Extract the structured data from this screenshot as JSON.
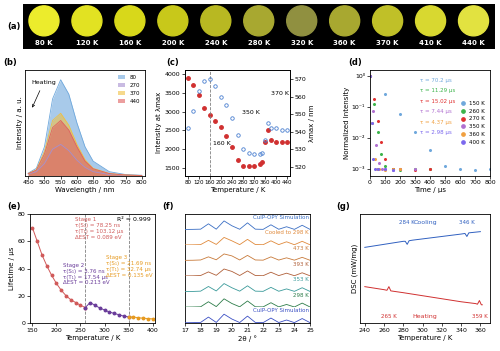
{
  "chart_data": [
    {
      "type": "swatches",
      "label": "(a)",
      "tick_labels": false,
      "categories": [
        "80 K",
        "120 K",
        "160 K",
        "200 K",
        "240 K",
        "280 K",
        "320 K",
        "360 K",
        "370 K",
        "410 K",
        "440 K"
      ],
      "colors": [
        "#ecec2c",
        "#e2e222",
        "#d8d81a",
        "#c8c81a",
        "#b8b822",
        "#a8a830",
        "#909040",
        "#a8a830",
        "#c0c028",
        "#d8d830",
        "#e2e240"
      ]
    },
    {
      "type": "line",
      "label": "(b)",
      "x_label": "Wavelength / nm",
      "y_label": "Intensity / a. u.",
      "x": [
        450,
        475,
        500,
        525,
        550,
        575,
        600,
        625,
        650,
        700,
        750,
        800
      ],
      "series": [
        {
          "name": "80",
          "color": "#6fa8dc",
          "values": [
            50,
            150,
            600,
            1600,
            2000,
            1700,
            1100,
            600,
            300,
            80,
            20,
            5
          ]
        },
        {
          "name": "270",
          "color": "#a58fd0",
          "values": [
            30,
            80,
            250,
            550,
            650,
            520,
            320,
            170,
            80,
            20,
            5,
            0
          ]
        },
        {
          "name": "370",
          "color": "#f0c040",
          "values": [
            40,
            120,
            500,
            1150,
            1300,
            1050,
            650,
            330,
            150,
            40,
            10,
            0
          ]
        },
        {
          "name": "440",
          "color": "#e06060",
          "values": [
            40,
            110,
            450,
            1000,
            1150,
            950,
            600,
            300,
            140,
            40,
            10,
            0
          ]
        }
      ],
      "xlim": [
        440,
        810
      ],
      "xticks": [
        450,
        500,
        550,
        600,
        650,
        700,
        750,
        800
      ],
      "ylim": [
        0,
        2200
      ],
      "tick_labels": "x",
      "legend": "upper right",
      "annotations": [
        {
          "text": "Heating"
        }
      ]
    },
    {
      "type": "scatter",
      "label": "(c)",
      "x_label": "Temperature / K",
      "y_label": "Intensity at λmax",
      "y2_label": "λmax / nm",
      "x": [
        80,
        100,
        120,
        140,
        160,
        180,
        200,
        220,
        240,
        260,
        280,
        300,
        320,
        340,
        350,
        360,
        370,
        380,
        400,
        420,
        440
      ],
      "series": [
        {
          "color": "#d03030",
          "marker": "filled_circle",
          "values": [
            3900,
            3700,
            3450,
            3100,
            2900,
            2750,
            2600,
            2350,
            2050,
            1700,
            1550,
            1550,
            1550,
            1600,
            1650,
            2200,
            2500,
            2250,
            2200,
            2200,
            2200
          ]
        },
        {
          "color": "#4a7fd0",
          "marker": "open_circle",
          "axis": "y2",
          "values": [
            542,
            552,
            563,
            569,
            570,
            566,
            560,
            555,
            548,
            538,
            530,
            528,
            527,
            527,
            528,
            535,
            545,
            542,
            542,
            541,
            541
          ]
        }
      ],
      "xlim": [
        70,
        450
      ],
      "xticks": [
        80,
        120,
        160,
        200,
        240,
        280,
        320,
        360,
        400,
        440
      ],
      "ylim": [
        1300,
        4100
      ],
      "yticks": [
        1500,
        2000,
        2500,
        3000,
        3500,
        4000
      ],
      "y2lim": [
        515,
        575
      ],
      "y2ticks": [
        520,
        530,
        540,
        550,
        560,
        570
      ],
      "vlines": [
        160
      ],
      "annotations": [
        {
          "text": "160 K",
          "x": 160
        },
        {
          "text": "350 K",
          "x": 350
        },
        {
          "text": "370 K",
          "x": 370
        }
      ]
    },
    {
      "type": "scatter",
      "label": "(d)",
      "x_label": "Time / μs",
      "y_label": "Normalized Intensity",
      "log": "y",
      "marker": "circle",
      "legend": "center right",
      "series": [
        {
          "name": "150 K",
          "color": "#6fa8dc",
          "annotation": "τ = 70.2 μs",
          "x": [
            0,
            100,
            200,
            300,
            400,
            500,
            600,
            700,
            800
          ],
          "values": [
            1,
            0.25,
            0.06,
            0.015,
            0.004,
            0.0012,
            0.001,
            0.0009,
            0.001
          ]
        },
        {
          "name": "260 K",
          "color": "#3cb44b",
          "annotation": "τ = 11.29 μs",
          "x": [
            0,
            25,
            50,
            75,
            100,
            150,
            200,
            300,
            400
          ],
          "values": [
            1,
            0.12,
            0.015,
            0.003,
            0.0012,
            0.001,
            0.0009,
            0.001,
            0.001
          ]
        },
        {
          "name": "270 K",
          "color": "#e03030",
          "annotation": "τ = 15.02 μs",
          "x": [
            0,
            25,
            50,
            75,
            100,
            150,
            200,
            300,
            400
          ],
          "values": [
            1,
            0.18,
            0.035,
            0.007,
            0.002,
            0.001,
            0.001,
            0.0009,
            0.001
          ]
        },
        {
          "name": "350 K",
          "color": "#b070d0",
          "annotation": "τ = 7.44 μs",
          "x": [
            0,
            20,
            40,
            60,
            80,
            100,
            150,
            200,
            300
          ],
          "values": [
            1,
            0.07,
            0.006,
            0.0015,
            0.001,
            0.001,
            0.0009,
            0.001,
            0.001
          ]
        },
        {
          "name": "360 K",
          "color": "#f0a040",
          "annotation": "τ = 4.37 μs",
          "x": [
            0,
            15,
            30,
            45,
            60,
            100,
            150,
            200
          ],
          "values": [
            1,
            0.03,
            0.002,
            0.001,
            0.001,
            0.0009,
            0.001,
            0.001
          ]
        },
        {
          "name": "400 K",
          "color": "#7b68ee",
          "annotation": "τ = 2.98 μs",
          "x": [
            0,
            10,
            20,
            30,
            50,
            100,
            150
          ],
          "values": [
            1,
            0.03,
            0.002,
            0.001,
            0.001,
            0.001,
            0.0009
          ]
        }
      ],
      "xlim": [
        0,
        800
      ],
      "xticks": [
        0,
        100,
        200,
        300,
        400,
        500,
        600,
        700,
        800
      ],
      "ylim": [
        0.0006,
        1.5
      ],
      "yticks": [
        {
          "value": 0.001,
          "label": "10⁻³"
        },
        {
          "value": 0.01,
          "label": "10⁻²"
        },
        {
          "value": 0.1,
          "label": "10⁻¹"
        },
        {
          "value": 1,
          "label": "10⁰"
        }
      ]
    },
    {
      "type": "scatter",
      "label": "(e)",
      "x_label": "Temperature / K",
      "y_label": "Lifetime / μs",
      "series": [
        {
          "stage": "Stage 1",
          "color": "#d05a5a",
          "notes": [
            "τ(S₁) = 78.25 ns",
            "τ(T₁) = 103.12 μs",
            "ΔEST = 0.089 eV"
          ],
          "x": [
            150,
            160,
            170,
            180,
            190,
            200,
            210,
            220,
            230,
            240,
            250,
            260
          ],
          "values": [
            70,
            60,
            50,
            42,
            35,
            29,
            24,
            20,
            17,
            15,
            13,
            11.3
          ]
        },
        {
          "stage": "Stage 2",
          "color": "#6a3d9a",
          "notes": [
            "τ(S₁) = 3.76 ns",
            "τ(T₁) = 17.54 μs",
            "ΔEST = 0.213 eV"
          ],
          "x": [
            260,
            270,
            280,
            290,
            300,
            310,
            320,
            330,
            340,
            350
          ],
          "values": [
            11.3,
            15,
            13,
            11,
            9.5,
            8,
            7,
            6,
            5,
            4.4
          ]
        },
        {
          "stage": "Stage 3",
          "color": "#e69a20",
          "notes": [
            "τ(S₁) = 21.69 ns",
            "τ(T₁) = 32.74 μs",
            "ΔEST = 0.135 eV"
          ],
          "x": [
            350,
            360,
            370,
            380,
            390,
            400
          ],
          "values": [
            4.4,
            4.37,
            3.8,
            3.5,
            3.2,
            2.98
          ]
        }
      ],
      "xlim": [
        145,
        405
      ],
      "xticks": [
        150,
        200,
        250,
        300,
        350,
        400
      ],
      "ylim": [
        0,
        80
      ],
      "yticks": [
        0,
        20,
        40,
        60,
        80
      ],
      "vlines": [
        260,
        350
      ],
      "annotations": [
        {
          "text": "R² = 0.999"
        }
      ]
    },
    {
      "type": "line",
      "label": "(f)",
      "x_label": "2θ / °",
      "tick_labels": "x",
      "x": [
        17,
        17.5,
        18,
        18.5,
        19,
        19.5,
        20,
        20.5,
        21,
        21.5,
        22,
        22.5,
        23,
        23.5,
        24,
        24.5,
        25
      ],
      "series": [
        {
          "label": "CuIP-OPY Simulation",
          "color": "#3b6fc4",
          "values": [
            2,
            3,
            5,
            60,
            5,
            90,
            40,
            4,
            70,
            5,
            3,
            50,
            4,
            30,
            3,
            45,
            3
          ]
        },
        {
          "label": "Cooled to 298 K",
          "color": "#e08a3c",
          "values": [
            3,
            4,
            6,
            50,
            8,
            80,
            45,
            6,
            60,
            7,
            5,
            45,
            6,
            35,
            5,
            40,
            4
          ]
        },
        {
          "label": "473 K",
          "color": "#c87a3a",
          "values": [
            4,
            5,
            8,
            40,
            10,
            70,
            50,
            8,
            55,
            8,
            6,
            40,
            7,
            30,
            6,
            35,
            5
          ]
        },
        {
          "label": "393 K",
          "color": "#b0603a",
          "values": [
            4,
            5,
            8,
            45,
            10,
            75,
            50,
            8,
            55,
            8,
            6,
            42,
            7,
            32,
            6,
            36,
            5
          ]
        },
        {
          "label": "353 K",
          "color": "#3a9a9a",
          "values": [
            3,
            4,
            7,
            55,
            9,
            85,
            42,
            7,
            62,
            7,
            5,
            46,
            6,
            30,
            5,
            42,
            4
          ]
        },
        {
          "label": "298 K",
          "color": "#2e7d4a",
          "values": [
            3,
            4,
            6,
            58,
            8,
            88,
            40,
            6,
            66,
            6,
            5,
            48,
            5,
            30,
            4,
            44,
            4
          ]
        },
        {
          "label": "CuIP-OPY Simulation",
          "color": "#3b4fc4",
          "values": [
            2,
            3,
            5,
            60,
            5,
            90,
            40,
            4,
            70,
            5,
            3,
            50,
            4,
            30,
            3,
            45,
            3
          ]
        }
      ],
      "xlim": [
        17,
        25
      ],
      "xticks": [
        17,
        18,
        19,
        20,
        21,
        22,
        23,
        24,
        25
      ],
      "ylim": [
        0,
        160
      ]
    },
    {
      "type": "line",
      "label": "(g)",
      "x_label": "Temperature / K",
      "y_label": "DSC (mW/mg)",
      "tick_labels": "x",
      "series": [
        {
          "label": "Cooling",
          "color": "#3060c0",
          "annotations": [
            {
              "text": "284 K",
              "x": 284
            },
            {
              "text": "346 K",
              "x": 346
            }
          ],
          "x": [
            240,
            260,
            280,
            282,
            284,
            286,
            290,
            300,
            320,
            340,
            344,
            346,
            348,
            360
          ],
          "values": [
            0.45,
            0.5,
            0.55,
            0.55,
            0.5,
            0.56,
            0.57,
            0.59,
            0.63,
            0.67,
            0.68,
            0.63,
            0.69,
            0.71
          ]
        },
        {
          "label": "Heating",
          "color": "#d03030",
          "annotations": [
            {
              "text": "265 K",
              "x": 265
            },
            {
              "text": "359 K",
              "x": 359
            }
          ],
          "x": [
            240,
            260,
            263,
            265,
            267,
            280,
            300,
            320,
            340,
            355,
            357,
            359,
            361,
            362
          ],
          "values": [
            -0.2,
            -0.25,
            -0.26,
            -0.2,
            -0.27,
            -0.3,
            -0.35,
            -0.4,
            -0.45,
            -0.48,
            -0.49,
            -0.43,
            -0.5,
            -0.5
          ]
        }
      ],
      "xlim": [
        235,
        370
      ],
      "xticks": [
        240,
        260,
        280,
        300,
        320,
        340,
        360
      ],
      "ylim": [
        -0.8,
        1.0
      ]
    }
  ]
}
